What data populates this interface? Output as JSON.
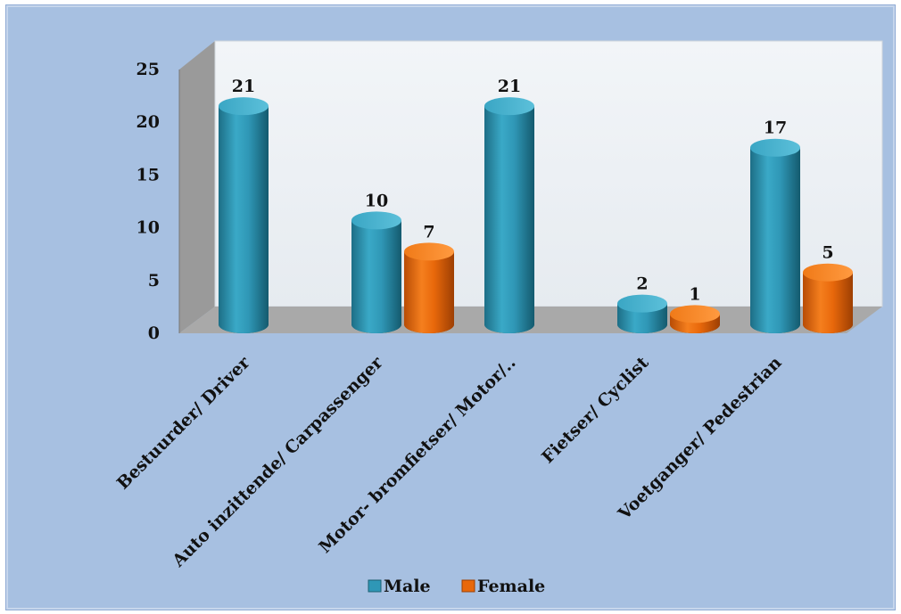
{
  "chart_data": {
    "type": "bar",
    "categories": [
      "Bestuurder/ Driver",
      "Auto inzittende/ Carpassenger",
      "Motor- bromfietser/ Motor/..",
      "Fietser/ Cyclist",
      "Voetganger/ Pedestrian"
    ],
    "series": [
      {
        "name": "Male",
        "values": [
          21,
          10,
          21,
          2,
          17
        ],
        "color": "#2f97b6"
      },
      {
        "name": "Female",
        "values": [
          null,
          7,
          null,
          1,
          5
        ],
        "color": "#e8680b"
      }
    ],
    "data_labels": {
      "male": [
        "21",
        "10",
        "21",
        "2",
        "17"
      ],
      "female": [
        "",
        "7",
        "",
        "1",
        "5"
      ]
    },
    "ylim": [
      0,
      25
    ],
    "yticks": [
      "0",
      "5",
      "10",
      "15",
      "20",
      "25"
    ],
    "xlabel": "",
    "ylabel": "",
    "legend": {
      "position": "bottom",
      "entries": [
        "Male",
        "Female"
      ]
    },
    "style": "3d-cylinder",
    "grid": false
  }
}
